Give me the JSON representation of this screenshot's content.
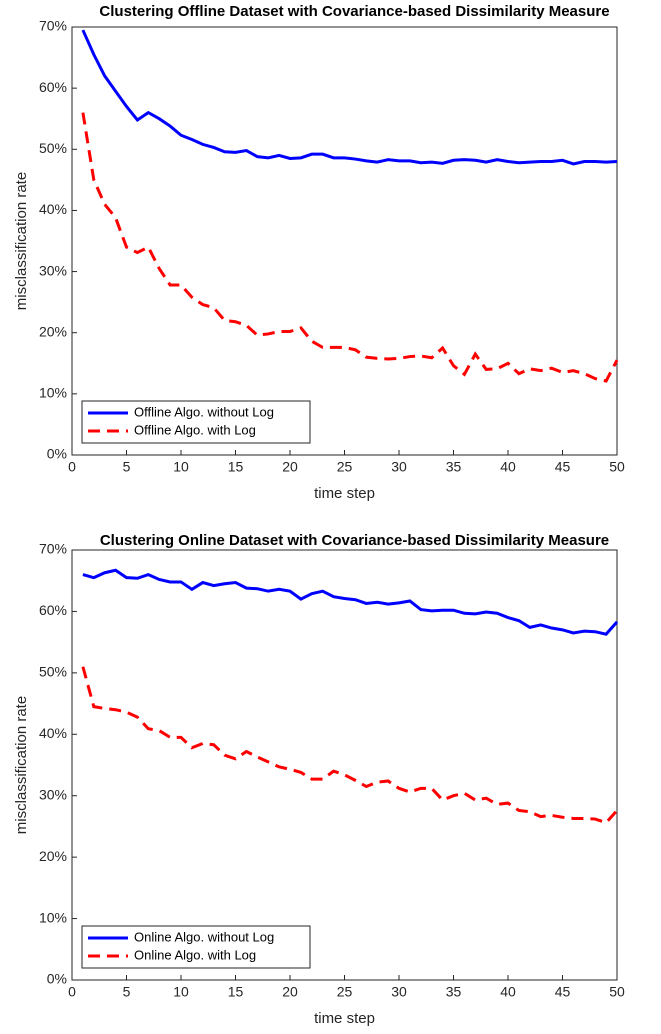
{
  "chart_data": [
    {
      "type": "line",
      "title": "Clustering Offline Dataset with Covariance-based Dissimilarity Measure",
      "xlabel": "time step",
      "ylabel": "misclassification rate",
      "x": [
        1,
        2,
        3,
        4,
        5,
        6,
        7,
        8,
        9,
        10,
        11,
        12,
        13,
        14,
        15,
        16,
        17,
        18,
        19,
        20,
        21,
        22,
        23,
        24,
        25,
        26,
        27,
        28,
        29,
        30,
        31,
        32,
        33,
        34,
        35,
        36,
        37,
        38,
        39,
        40,
        41,
        42,
        43,
        44,
        45,
        46,
        47,
        48,
        49,
        50
      ],
      "xlim": [
        0,
        50
      ],
      "xticks": [
        0,
        5,
        10,
        15,
        20,
        25,
        30,
        35,
        40,
        45,
        50
      ],
      "ylim": [
        0,
        70
      ],
      "yticks": [
        {
          "value": 0,
          "label": "0%"
        },
        {
          "value": 10,
          "label": "10%"
        },
        {
          "value": 20,
          "label": "20%"
        },
        {
          "value": 30,
          "label": "30%"
        },
        {
          "value": 40,
          "label": "40%"
        },
        {
          "value": 50,
          "label": "50%"
        },
        {
          "value": 60,
          "label": "60%"
        },
        {
          "value": 70,
          "label": "70%"
        }
      ],
      "legend": "lower left",
      "series": [
        {
          "name": "Offline Algo. without Log",
          "color": "#0000ff",
          "linestyle": "solid",
          "values": [
            69.5,
            65.5,
            62,
            59.5,
            57,
            54.8,
            56,
            55,
            53.8,
            52.3,
            51.6,
            50.8,
            50.3,
            49.6,
            49.5,
            49.8,
            48.8,
            48.6,
            49,
            48.5,
            48.6,
            49.2,
            49.2,
            48.6,
            48.6,
            48.4,
            48.1,
            47.9,
            48.3,
            48.1,
            48.1,
            47.8,
            47.9,
            47.7,
            48.2,
            48.3,
            48.2,
            47.9,
            48.3,
            48,
            47.8,
            47.9,
            48,
            48,
            48.2,
            47.6,
            48,
            48,
            47.9,
            48
          ]
        },
        {
          "name": "Offline Algo. with Log",
          "color": "#ff0000",
          "linestyle": "dashed",
          "values": [
            56,
            45,
            41,
            38.8,
            34,
            33.1,
            34,
            30.5,
            27.8,
            27.8,
            25.8,
            24.6,
            24.1,
            22,
            21.8,
            21.2,
            19.6,
            19.8,
            20.2,
            20.2,
            20.8,
            18.6,
            17.6,
            17.6,
            17.6,
            17.2,
            16,
            15.8,
            15.7,
            15.8,
            16.1,
            16.2,
            15.9,
            17.5,
            14.6,
            13.2,
            16.5,
            14,
            14.1,
            15,
            13.3,
            14.1,
            13.8,
            14.2,
            13.5,
            13.8,
            13.3,
            12.5,
            12.1,
            15.5
          ]
        }
      ]
    },
    {
      "type": "line",
      "title": "Clustering Online Dataset with Covariance-based Dissimilarity Measure",
      "xlabel": "time step",
      "ylabel": "misclassification rate",
      "x": [
        1,
        2,
        3,
        4,
        5,
        6,
        7,
        8,
        9,
        10,
        11,
        12,
        13,
        14,
        15,
        16,
        17,
        18,
        19,
        20,
        21,
        22,
        23,
        24,
        25,
        26,
        27,
        28,
        29,
        30,
        31,
        32,
        33,
        34,
        35,
        36,
        37,
        38,
        39,
        40,
        41,
        42,
        43,
        44,
        45,
        46,
        47,
        48,
        49,
        50
      ],
      "xlim": [
        0,
        50
      ],
      "xticks": [
        0,
        5,
        10,
        15,
        20,
        25,
        30,
        35,
        40,
        45,
        50
      ],
      "ylim": [
        0,
        70
      ],
      "yticks": [
        {
          "value": 0,
          "label": "0%"
        },
        {
          "value": 10,
          "label": "10%"
        },
        {
          "value": 20,
          "label": "20%"
        },
        {
          "value": 30,
          "label": "30%"
        },
        {
          "value": 40,
          "label": "40%"
        },
        {
          "value": 50,
          "label": "50%"
        },
        {
          "value": 60,
          "label": "60%"
        },
        {
          "value": 70,
          "label": "70%"
        }
      ],
      "legend": "lower left",
      "series": [
        {
          "name": "Online Algo. without Log",
          "color": "#0000ff",
          "linestyle": "solid",
          "values": [
            66,
            65.5,
            66.3,
            66.7,
            65.5,
            65.4,
            66,
            65.2,
            64.8,
            64.8,
            63.6,
            64.7,
            64.2,
            64.5,
            64.7,
            63.8,
            63.7,
            63.3,
            63.6,
            63.3,
            62,
            62.9,
            63.3,
            62.4,
            62.1,
            61.9,
            61.3,
            61.5,
            61.2,
            61.4,
            61.7,
            60.3,
            60.1,
            60.2,
            60.2,
            59.7,
            59.6,
            59.9,
            59.7,
            59,
            58.5,
            57.4,
            57.8,
            57.3,
            57,
            56.5,
            56.8,
            56.7,
            56.3,
            58.3
          ]
        },
        {
          "name": "Online Algo. with Log",
          "color": "#ff0000",
          "linestyle": "dashed",
          "values": [
            51,
            44.5,
            44.2,
            44,
            43.6,
            42.8,
            40.9,
            40.6,
            39.5,
            39.5,
            37.8,
            38.5,
            38.3,
            36.6,
            36,
            37.2,
            36.3,
            35.5,
            34.7,
            34.3,
            33.8,
            32.7,
            32.7,
            34,
            33.4,
            32.5,
            31.5,
            32.2,
            32.4,
            31.2,
            30.6,
            31.2,
            31.2,
            29.3,
            30,
            30.4,
            29.3,
            29.6,
            28.6,
            28.8,
            27.6,
            27.4,
            26.6,
            26.8,
            26.5,
            26.3,
            26.3,
            26.2,
            25.6,
            27.6
          ]
        }
      ]
    }
  ]
}
